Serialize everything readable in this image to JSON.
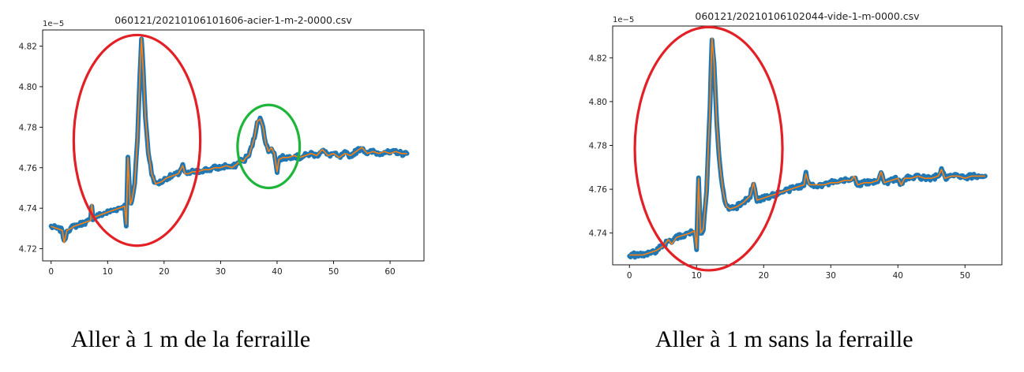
{
  "chart_data": [
    {
      "type": "line",
      "title": "060121/20210106101606-acier-1-m-2-0000.csv",
      "y_multiplier_label": "1e−5",
      "x_ticks": [
        0,
        10,
        20,
        30,
        40,
        50,
        60
      ],
      "y_ticks": [
        4.72,
        4.74,
        4.76,
        4.78,
        4.8,
        4.82
      ],
      "y_tick_labels": [
        "4.72",
        "4.74",
        "4.76",
        "4.78",
        "4.80",
        "4.82"
      ],
      "xlim": [
        -1.5,
        66
      ],
      "ylim": [
        4.714,
        4.828
      ],
      "grid": false,
      "legend": "none",
      "series": [
        {
          "x": [
            0,
            1,
            2,
            2.3,
            2.8,
            3.5,
            4,
            5,
            6,
            7,
            7.2,
            7.4,
            8,
            9,
            10,
            11,
            12,
            13,
            13.3,
            13.6,
            14,
            14.3,
            14.8,
            15.3,
            15.7,
            16,
            16.3,
            16.7,
            17.2,
            17.8,
            18.5,
            19.5,
            20.5,
            21.5,
            22.5,
            23.3,
            23.7,
            24.3,
            25,
            26,
            27,
            28,
            29,
            30,
            31,
            32,
            33,
            33.5,
            34,
            34.5,
            35,
            36,
            36.5,
            37,
            37.5,
            38,
            38.5,
            39,
            39.5,
            40,
            40.3,
            41,
            42,
            43,
            44,
            45,
            46,
            47,
            48,
            49,
            50,
            51,
            52,
            53,
            54,
            55,
            56,
            57,
            58,
            59,
            60,
            61,
            62,
            63
          ],
          "y": [
            4.731,
            4.73,
            4.729,
            4.723,
            4.729,
            4.73,
            4.731,
            4.732,
            4.733,
            4.734,
            4.742,
            4.735,
            4.736,
            4.737,
            4.738,
            4.739,
            4.74,
            4.741,
            4.732,
            4.765,
            4.742,
            4.744,
            4.752,
            4.775,
            4.805,
            4.824,
            4.808,
            4.785,
            4.768,
            4.757,
            4.752,
            4.753,
            4.755,
            4.756,
            4.757,
            4.761,
            4.757,
            4.757,
            4.758,
            4.758,
            4.759,
            4.759,
            4.76,
            4.76,
            4.761,
            4.76,
            4.762,
            4.764,
            4.763,
            4.765,
            4.766,
            4.775,
            4.783,
            4.784,
            4.78,
            4.772,
            4.768,
            4.77,
            4.767,
            4.758,
            4.764,
            4.765,
            4.765,
            4.766,
            4.765,
            4.766,
            4.767,
            4.766,
            4.769,
            4.766,
            4.767,
            4.765,
            4.767,
            4.766,
            4.768,
            4.77,
            4.767,
            4.768,
            4.767,
            4.768,
            4.767,
            4.768,
            4.767,
            4.767
          ]
        }
      ],
      "annotations": [
        {
          "shape": "ellipse",
          "color": "#e32026",
          "cx": 15.2,
          "cy": 4.7735,
          "rx_data": 11.2,
          "ry_data": 0.052
        },
        {
          "shape": "ellipse",
          "color": "#1db53a",
          "cx": 38.5,
          "cy": 4.7705,
          "rx_data": 5.5,
          "ry_data": 0.0205
        }
      ]
    },
    {
      "type": "line",
      "title": "060121/20210106102044-vide-1-m-0000.csv",
      "y_multiplier_label": "1e−5",
      "x_ticks": [
        0,
        10,
        20,
        30,
        40,
        50
      ],
      "y_ticks": [
        4.74,
        4.76,
        4.78,
        4.8,
        4.82
      ],
      "y_tick_labels": [
        "4.74",
        "4.76",
        "4.78",
        "4.80",
        "4.82"
      ],
      "xlim": [
        -2.5,
        55.5
      ],
      "ylim": [
        4.7255,
        4.8345
      ],
      "grid": false,
      "legend": "none",
      "series": [
        {
          "x": [
            0,
            1,
            2,
            3,
            4,
            5,
            5.8,
            6.3,
            7,
            8,
            9,
            9.7,
            10,
            10.3,
            10.6,
            11,
            11.5,
            12,
            12.3,
            12.6,
            13,
            13.5,
            14,
            14.5,
            15,
            16,
            17,
            18,
            18.5,
            19,
            20,
            21,
            22,
            23,
            24,
            25,
            26,
            26.3,
            26.8,
            28,
            29,
            30,
            31,
            32,
            33,
            33.5,
            34,
            35,
            36,
            37,
            37.5,
            38,
            39,
            40,
            40.5,
            41,
            42,
            43,
            44,
            45,
            46,
            46.5,
            47,
            48,
            49,
            50,
            51,
            52,
            53
          ],
          "y": [
            4.73,
            4.73,
            4.73,
            4.731,
            4.732,
            4.734,
            4.737,
            4.735,
            4.738,
            4.739,
            4.74,
            4.741,
            4.733,
            4.765,
            4.74,
            4.742,
            4.76,
            4.798,
            4.829,
            4.818,
            4.79,
            4.77,
            4.758,
            4.752,
            4.751,
            4.752,
            4.754,
            4.757,
            4.763,
            4.755,
            4.756,
            4.757,
            4.758,
            4.759,
            4.76,
            4.761,
            4.762,
            4.767,
            4.762,
            4.762,
            4.762,
            4.763,
            4.763,
            4.764,
            4.764,
            4.766,
            4.762,
            4.763,
            4.763,
            4.764,
            4.768,
            4.763,
            4.764,
            4.765,
            4.762,
            4.765,
            4.765,
            4.766,
            4.765,
            4.765,
            4.766,
            4.769,
            4.765,
            4.766,
            4.766,
            4.765,
            4.766,
            4.766,
            4.766
          ]
        }
      ],
      "annotations": [
        {
          "shape": "ellipse",
          "color": "#e32026",
          "cx": 11.8,
          "cy": 4.7785,
          "rx_data": 11.0,
          "ry_data": 0.0555
        }
      ]
    }
  ],
  "captions": {
    "left": "Aller à 1 m de la ferraille",
    "right": "Aller à 1 m sans la ferraille"
  },
  "colors": {
    "raw_series": "#1f77b4",
    "smoothed_series": "#ff7f0e",
    "axes": "#000000"
  }
}
